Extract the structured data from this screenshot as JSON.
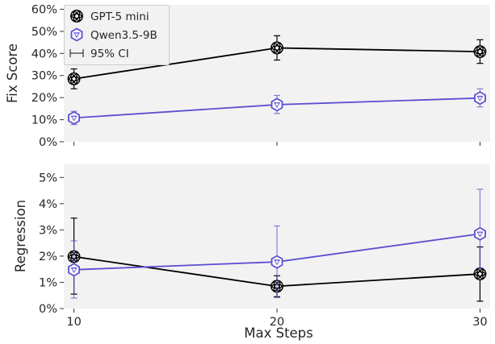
{
  "chart_data": [
    {
      "type": "line",
      "panel": "top",
      "xlabel": "",
      "ylabel": "Fix Score",
      "x": [
        10,
        20,
        30
      ],
      "xlim": [
        9.5,
        30.5
      ],
      "ylim": [
        0,
        0.62
      ],
      "yticks": [
        0,
        0.1,
        0.2,
        0.3,
        0.4,
        0.5,
        0.6
      ],
      "ytick_labels": [
        "0%",
        "10%",
        "20%",
        "30%",
        "40%",
        "50%",
        "60%"
      ],
      "grid": false,
      "legend_position": "top-left",
      "legend": [
        "GPT-5 mini",
        "Qwen3.5-9B",
        "95% CI"
      ],
      "series": [
        {
          "name": "GPT-5 mini",
          "color": "#000000",
          "marker_icon": "openai-logo-icon",
          "values": [
            0.285,
            0.425,
            0.408
          ],
          "ci_low": [
            0.24,
            0.37,
            0.355
          ],
          "ci_high": [
            0.33,
            0.48,
            0.462
          ]
        },
        {
          "name": "Qwen3.5-9B",
          "color": "#5b4fd1",
          "marker_icon": "qwen-logo-icon",
          "values": [
            0.108,
            0.168,
            0.198
          ],
          "ci_low": [
            0.078,
            0.128,
            0.158
          ],
          "ci_high": [
            0.138,
            0.21,
            0.24
          ]
        }
      ]
    },
    {
      "type": "line",
      "panel": "bottom",
      "xlabel": "Max Steps",
      "ylabel": "Regression",
      "x": [
        10,
        20,
        30
      ],
      "xticks": [
        10,
        20,
        30
      ],
      "xtick_labels": [
        "10",
        "20",
        "30"
      ],
      "xlim": [
        9.5,
        30.5
      ],
      "ylim": [
        0,
        0.055
      ],
      "yticks": [
        0,
        0.01,
        0.02,
        0.03,
        0.04,
        0.05
      ],
      "ytick_labels": [
        "0%",
        "1%",
        "2%",
        "3%",
        "4%",
        "5%"
      ],
      "grid": false,
      "series": [
        {
          "name": "GPT-5 mini",
          "color": "#000000",
          "marker_icon": "openai-logo-icon",
          "values": [
            0.0198,
            0.0085,
            0.0132
          ],
          "ci_low": [
            0.0055,
            0.0045,
            0.0028
          ],
          "ci_high": [
            0.0345,
            0.0125,
            0.0235
          ]
        },
        {
          "name": "Qwen3.5-9B",
          "color": "#5b4fd1",
          "marker_icon": "qwen-logo-icon",
          "values": [
            0.0148,
            0.0178,
            0.0285
          ],
          "ci_low": [
            0.004,
            0.0042,
            0.0155
          ],
          "ci_high": [
            0.0258,
            0.0315,
            0.0455
          ]
        }
      ]
    }
  ]
}
